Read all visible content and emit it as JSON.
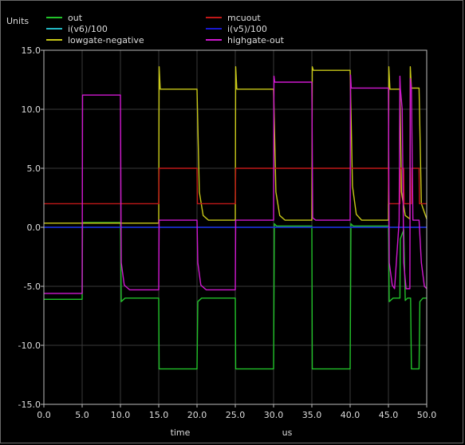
{
  "chart_data": {
    "type": "line",
    "title": "",
    "units_label": "Units",
    "xlabel": "time",
    "x_units": "us",
    "xlim": [
      0,
      50
    ],
    "ylim": [
      -15,
      15
    ],
    "x_ticks": [
      "0.0",
      "5.0",
      "10.0",
      "15.0",
      "20.0",
      "25.0",
      "30.0",
      "35.0",
      "40.0",
      "45.0",
      "50.0"
    ],
    "y_ticks": [
      "15.0",
      "10.0",
      "5.0",
      "0.0",
      "-5.0",
      "-10.0",
      "-15.0"
    ],
    "x_tick_values": [
      0,
      5,
      10,
      15,
      20,
      25,
      30,
      35,
      40,
      45,
      50
    ],
    "y_tick_values": [
      15,
      10,
      5,
      0,
      -5,
      -10,
      -15
    ],
    "grid": true,
    "legend_position": "top",
    "series": [
      {
        "name": "out",
        "color": "#22c22a",
        "points": [
          [
            0,
            -6.1
          ],
          [
            5,
            -6.1
          ],
          [
            5.05,
            0.4
          ],
          [
            10,
            0.4
          ],
          [
            10.1,
            -6.3
          ],
          [
            10.6,
            -6.0
          ],
          [
            15,
            -6.0
          ],
          [
            15.05,
            -12.0
          ],
          [
            20,
            -12.0
          ],
          [
            20.1,
            -6.3
          ],
          [
            20.6,
            -6.0
          ],
          [
            25,
            -6.0
          ],
          [
            25.05,
            -12.0
          ],
          [
            30,
            -12.0
          ],
          [
            30.1,
            0.3
          ],
          [
            30.4,
            0.1
          ],
          [
            35,
            0.1
          ],
          [
            35.05,
            -12.0
          ],
          [
            40,
            -12.0
          ],
          [
            40.1,
            0.3
          ],
          [
            40.4,
            0.1
          ],
          [
            45,
            0.1
          ],
          [
            45.1,
            -6.3
          ],
          [
            45.6,
            -6.0
          ],
          [
            46.5,
            -6.0
          ],
          [
            46.55,
            -1.0
          ],
          [
            47.0,
            -0.2
          ],
          [
            47.2,
            -6.2
          ],
          [
            47.5,
            -6.0
          ],
          [
            47.9,
            -6.0
          ],
          [
            48.0,
            -12.0
          ],
          [
            49.0,
            -12.0
          ],
          [
            49.1,
            -6.3
          ],
          [
            49.5,
            -6.0
          ],
          [
            50,
            -6.0
          ]
        ]
      },
      {
        "name": "i(v6)/100",
        "color": "#22b8c4",
        "points": [
          [
            0,
            0
          ],
          [
            50,
            0
          ]
        ]
      },
      {
        "name": "lowgate-negative",
        "color": "#c8c818",
        "points": [
          [
            0,
            0.35
          ],
          [
            15,
            0.35
          ],
          [
            15.05,
            13.6
          ],
          [
            15.2,
            11.7
          ],
          [
            20,
            11.7
          ],
          [
            20.3,
            3.0
          ],
          [
            20.8,
            1.0
          ],
          [
            21.5,
            0.6
          ],
          [
            25,
            0.6
          ],
          [
            25.05,
            13.6
          ],
          [
            25.2,
            11.7
          ],
          [
            30,
            11.7
          ],
          [
            30.3,
            3.0
          ],
          [
            30.8,
            1.0
          ],
          [
            31.5,
            0.6
          ],
          [
            35,
            0.6
          ],
          [
            35.05,
            13.6
          ],
          [
            35.2,
            13.3
          ],
          [
            40,
            13.3
          ],
          [
            40.3,
            3.5
          ],
          [
            40.8,
            1.1
          ],
          [
            41.5,
            0.6
          ],
          [
            45,
            0.6
          ],
          [
            45.05,
            13.6
          ],
          [
            45.2,
            11.7
          ],
          [
            46.5,
            11.7
          ],
          [
            46.7,
            3.0
          ],
          [
            47.2,
            1.0
          ],
          [
            47.8,
            0.7
          ],
          [
            47.85,
            13.6
          ],
          [
            48.0,
            11.8
          ],
          [
            49.0,
            11.8
          ],
          [
            49.3,
            2.0
          ],
          [
            50,
            0.7
          ]
        ]
      },
      {
        "name": "mcuout",
        "color": "#c01818",
        "points": [
          [
            0,
            2.0
          ],
          [
            10,
            2.0
          ],
          [
            10.05,
            2.0
          ],
          [
            15,
            2.0
          ],
          [
            15.05,
            5.0
          ],
          [
            20,
            5.0
          ],
          [
            20.05,
            2.0
          ],
          [
            25,
            2.0
          ],
          [
            25.05,
            5.0
          ],
          [
            45,
            5.0
          ],
          [
            45.05,
            2.0
          ],
          [
            46.5,
            2.0
          ],
          [
            46.55,
            5.0
          ],
          [
            47.0,
            5.0
          ],
          [
            47.05,
            2.0
          ],
          [
            48.0,
            2.0
          ],
          [
            48.05,
            5.0
          ],
          [
            49.0,
            5.0
          ],
          [
            49.05,
            2.0
          ],
          [
            50,
            2.0
          ]
        ]
      },
      {
        "name": "i(v5)/100",
        "color": "#1818d0",
        "points": [
          [
            0,
            0
          ],
          [
            50,
            0
          ]
        ]
      },
      {
        "name": "highgate-out",
        "color": "#d018d0",
        "points": [
          [
            0,
            -5.6
          ],
          [
            5,
            -5.6
          ],
          [
            5.05,
            11.2
          ],
          [
            10,
            11.2
          ],
          [
            10.1,
            -3.0
          ],
          [
            10.5,
            -4.9
          ],
          [
            11.2,
            -5.3
          ],
          [
            15,
            -5.3
          ],
          [
            15.05,
            0.6
          ],
          [
            20,
            0.6
          ],
          [
            20.1,
            -3.0
          ],
          [
            20.5,
            -4.9
          ],
          [
            21.2,
            -5.3
          ],
          [
            25,
            -5.3
          ],
          [
            25.05,
            0.6
          ],
          [
            30,
            0.6
          ],
          [
            30.05,
            12.8
          ],
          [
            30.15,
            12.3
          ],
          [
            35,
            12.3
          ],
          [
            35.1,
            0.8
          ],
          [
            35.5,
            0.6
          ],
          [
            40,
            0.6
          ],
          [
            40.05,
            12.9
          ],
          [
            40.15,
            11.8
          ],
          [
            45,
            11.8
          ],
          [
            45.1,
            -3.0
          ],
          [
            45.5,
            -4.9
          ],
          [
            45.8,
            -5.2
          ],
          [
            46.4,
            0.5
          ],
          [
            46.5,
            12.8
          ],
          [
            46.55,
            11.8
          ],
          [
            46.8,
            10.0
          ],
          [
            47.0,
            -3.0
          ],
          [
            47.3,
            -5.2
          ],
          [
            47.8,
            -5.2
          ],
          [
            47.85,
            12.6
          ],
          [
            48.0,
            11.8
          ],
          [
            48.2,
            0.6
          ],
          [
            49.0,
            0.6
          ],
          [
            49.3,
            -3.0
          ],
          [
            49.7,
            -5.0
          ],
          [
            50,
            -5.2
          ]
        ]
      }
    ]
  }
}
